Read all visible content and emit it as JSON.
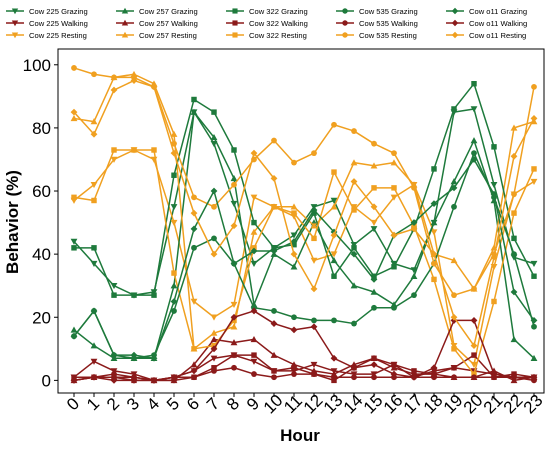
{
  "chart_data": {
    "type": "line",
    "title": "",
    "xlabel": "Hour",
    "ylabel": "Behavior (%)",
    "x": [
      0,
      1,
      2,
      3,
      4,
      5,
      6,
      7,
      8,
      9,
      10,
      11,
      12,
      13,
      14,
      15,
      16,
      17,
      18,
      19,
      20,
      21,
      22,
      23
    ],
    "xlim": [
      -0.8,
      23.5
    ],
    "ylim": [
      -4,
      105
    ],
    "yticks": [
      0,
      20,
      40,
      60,
      80,
      100
    ],
    "grid": false,
    "legend_position": "top",
    "series": [
      {
        "name": "Cow 225 Grazing",
        "color": "#1e7a3c",
        "marker": "triangle-down",
        "values": [
          44,
          37,
          30,
          27,
          28,
          55,
          85,
          75,
          56,
          37,
          42,
          46,
          55,
          57,
          43,
          48,
          37,
          35,
          50,
          85,
          86,
          62,
          39,
          37
        ]
      },
      {
        "name": "Cow 225 Walking",
        "color": "#8b1a1a",
        "marker": "triangle-down",
        "values": [
          1,
          6,
          3,
          2,
          0,
          1,
          3,
          7,
          8,
          6,
          3,
          3,
          5,
          3,
          2,
          2,
          5,
          1,
          3,
          4,
          3,
          2,
          1,
          1
        ]
      },
      {
        "name": "Cow 225 Resting",
        "color": "#f0a020",
        "marker": "triangle-down",
        "values": [
          57,
          62,
          70,
          73,
          70,
          50,
          25,
          20,
          24,
          58,
          55,
          52,
          38,
          40,
          55,
          50,
          58,
          62,
          47,
          11,
          5,
          36,
          59,
          63
        ]
      },
      {
        "name": "Cow 257 Grazing",
        "color": "#1e7a3c",
        "marker": "triangle-up",
        "values": [
          16,
          11,
          7,
          7,
          7,
          30,
          85,
          77,
          64,
          24,
          40,
          36,
          50,
          38,
          30,
          28,
          24,
          33,
          50,
          63,
          76,
          57,
          13,
          7
        ]
      },
      {
        "name": "Cow 257 Walking",
        "color": "#8b1a1a",
        "marker": "triangle-up",
        "values": [
          0,
          1,
          1,
          1,
          0,
          0,
          5,
          13,
          12,
          13,
          8,
          5,
          3,
          2,
          5,
          7,
          4,
          2,
          2,
          1,
          1,
          3,
          0,
          1
        ]
      },
      {
        "name": "Cow 257 Resting",
        "color": "#f0a020",
        "marker": "triangle-up",
        "values": [
          83,
          82,
          96,
          97,
          94,
          78,
          10,
          15,
          17,
          47,
          55,
          55,
          49,
          55,
          69,
          68,
          69,
          62,
          40,
          38,
          29,
          42,
          80,
          82
        ]
      },
      {
        "name": "Cow 322 Grazing",
        "color": "#1e7a3c",
        "marker": "square",
        "values": [
          42,
          42,
          27,
          27,
          27,
          65,
          89,
          85,
          73,
          50,
          42,
          43,
          53,
          33,
          42,
          33,
          36,
          48,
          67,
          86,
          94,
          74,
          45,
          33
        ]
      },
      {
        "name": "Cow 322 Walking",
        "color": "#8b1a1a",
        "marker": "square",
        "values": [
          1,
          1,
          1,
          0,
          0,
          1,
          1,
          4,
          8,
          8,
          3,
          4,
          2,
          0,
          4,
          7,
          5,
          3,
          2,
          4,
          8,
          1,
          2,
          1
        ]
      },
      {
        "name": "Cow 322 Resting",
        "color": "#f0a020",
        "marker": "square",
        "values": [
          58,
          57,
          73,
          73,
          73,
          34,
          10,
          11,
          19,
          42,
          55,
          53,
          45,
          66,
          54,
          61,
          61,
          49,
          32,
          10,
          2,
          25,
          53,
          67
        ]
      },
      {
        "name": "Cow 535 Grazing",
        "color": "#1e7a3c",
        "marker": "circle",
        "values": [
          14,
          22,
          8,
          7,
          8,
          22,
          42,
          45,
          37,
          23,
          22,
          20,
          19,
          19,
          18,
          23,
          23,
          27,
          37,
          55,
          72,
          58,
          40,
          17
        ]
      },
      {
        "name": "Cow 535 Walking",
        "color": "#8b1a1a",
        "marker": "circle",
        "values": [
          0,
          1,
          2,
          1,
          0,
          0,
          1,
          3,
          4,
          2,
          1,
          2,
          2,
          1,
          1,
          1,
          1,
          1,
          1,
          1,
          1,
          1,
          1,
          0
        ]
      },
      {
        "name": "Cow 535 Resting",
        "color": "#f0a020",
        "marker": "circle",
        "values": [
          99,
          97,
          96,
          96,
          93,
          75,
          58,
          55,
          62,
          70,
          76,
          69,
          72,
          81,
          79,
          75,
          72,
          61,
          37,
          27,
          29,
          40,
          59,
          93
        ]
      },
      {
        "name": "Cow o11 Grazing",
        "color": "#1e7a3c",
        "marker": "diamond",
        "values": [
          14,
          22,
          8,
          8,
          7,
          25,
          48,
          60,
          37,
          41,
          41,
          44,
          54,
          47,
          40,
          32,
          46,
          50,
          56,
          61,
          70,
          59,
          28,
          19
        ]
      },
      {
        "name": "Cow o11 Walking",
        "color": "#8b1a1a",
        "marker": "diamond",
        "values": [
          0,
          1,
          0,
          0,
          0,
          1,
          3,
          10,
          20,
          22,
          18,
          16,
          17,
          7,
          4,
          5,
          2,
          1,
          4,
          19,
          19,
          2,
          1,
          1
        ]
      },
      {
        "name": "Cow o11 Resting",
        "color": "#f0a020",
        "marker": "diamond",
        "values": [
          85,
          78,
          92,
          95,
          93,
          72,
          53,
          40,
          49,
          72,
          64,
          40,
          29,
          46,
          63,
          55,
          46,
          48,
          40,
          20,
          11,
          39,
          71,
          83
        ]
      }
    ]
  }
}
